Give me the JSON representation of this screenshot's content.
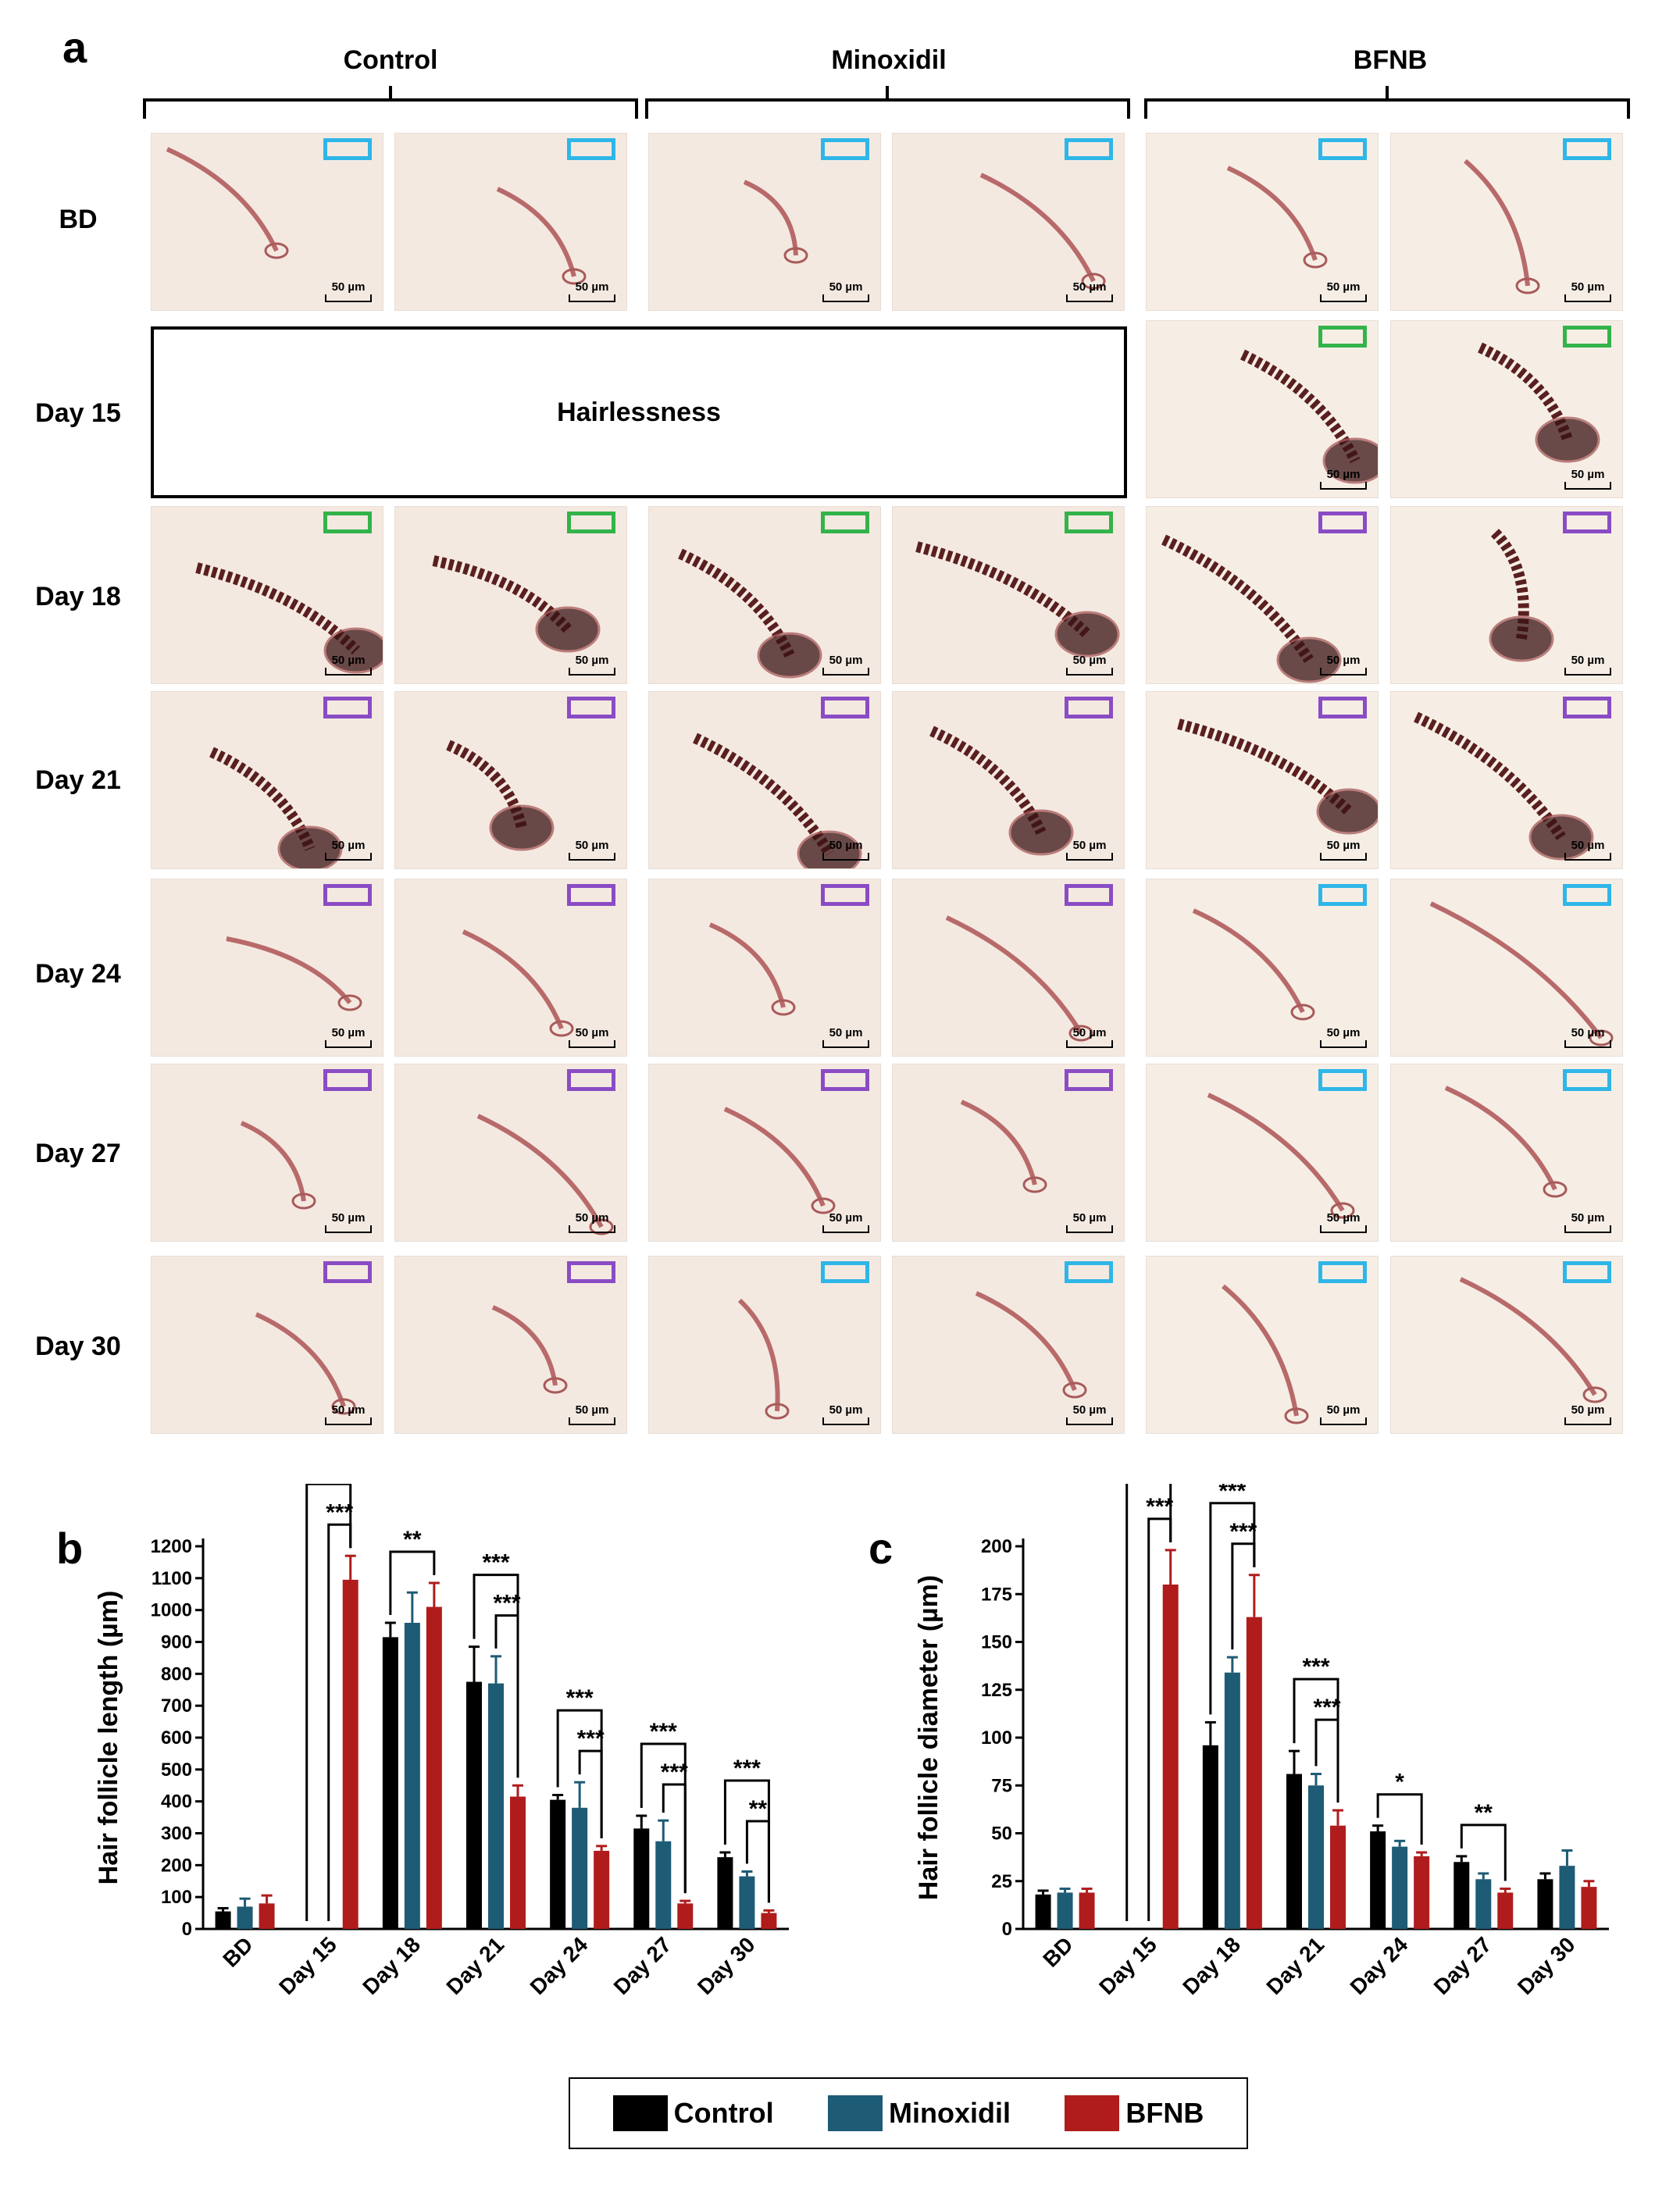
{
  "panel_a": {
    "letter": "a",
    "groups": [
      "Control",
      "Minoxidil",
      "BFNB"
    ],
    "rows": [
      "BD",
      "Day 15",
      "Day 18",
      "Day 21",
      "Day 24",
      "Day 27",
      "Day 30"
    ],
    "hairless_label": "Hairlessness",
    "scale_label": "50 µm",
    "tag_colors": {
      "cyan": "#2fb6e8",
      "green": "#33b34a",
      "purple": "#8a4cc4"
    },
    "tiles": [
      [
        "cyan",
        "cyan",
        "cyan",
        "cyan",
        "cyan",
        "cyan"
      ],
      [
        null,
        null,
        null,
        null,
        "green",
        "green"
      ],
      [
        "green",
        "green",
        "green",
        "green",
        "purple",
        "purple"
      ],
      [
        "purple",
        "purple",
        "purple",
        "purple",
        "purple",
        "purple"
      ],
      [
        "purple",
        "purple",
        "purple",
        "purple",
        "cyan",
        "cyan"
      ],
      [
        "purple",
        "purple",
        "purple",
        "purple",
        "cyan",
        "cyan"
      ],
      [
        "purple",
        "purple",
        "cyan",
        "cyan",
        "cyan",
        "cyan"
      ]
    ]
  },
  "chart_data": [
    {
      "type": "bar",
      "panel": "b",
      "ylabel": "Hair follicle length (µm)",
      "categories": [
        "BD",
        "Day 15",
        "Day 18",
        "Day 21",
        "Day 24",
        "Day 27",
        "Day 30"
      ],
      "ylim": [
        0,
        1200
      ],
      "yticks": [
        "0",
        "100",
        "200",
        "300",
        "400",
        "500",
        "600",
        "700",
        "800",
        "900",
        "1000",
        "1100",
        "1200"
      ],
      "series": [
        {
          "name": "Control",
          "color": "#000000",
          "values": [
            55,
            0,
            915,
            775,
            405,
            315,
            225
          ],
          "errors": [
            10,
            0,
            45,
            110,
            15,
            40,
            15
          ]
        },
        {
          "name": "Minoxidil",
          "color": "#1e5b74",
          "values": [
            70,
            0,
            960,
            770,
            380,
            275,
            165
          ],
          "errors": [
            25,
            0,
            95,
            85,
            80,
            65,
            15
          ]
        },
        {
          "name": "BFNB",
          "color": "#b01c1c",
          "values": [
            80,
            1095,
            1010,
            415,
            245,
            80,
            50
          ],
          "errors": [
            25,
            75,
            75,
            35,
            15,
            8,
            8
          ]
        }
      ],
      "significance": [
        {
          "category": "Day 15",
          "from": "Control",
          "to": "BFNB",
          "label": "***"
        },
        {
          "category": "Day 15",
          "from": "Minoxidil",
          "to": "BFNB",
          "label": "***"
        },
        {
          "category": "Day 18",
          "from": "Control",
          "to": "BFNB",
          "label": "**"
        },
        {
          "category": "Day 21",
          "from": "Control",
          "to": "BFNB",
          "label": "***"
        },
        {
          "category": "Day 21",
          "from": "Minoxidil",
          "to": "BFNB",
          "label": "***"
        },
        {
          "category": "Day 24",
          "from": "Control",
          "to": "BFNB",
          "label": "***"
        },
        {
          "category": "Day 24",
          "from": "Minoxidil",
          "to": "BFNB",
          "label": "***"
        },
        {
          "category": "Day 27",
          "from": "Control",
          "to": "BFNB",
          "label": "***"
        },
        {
          "category": "Day 27",
          "from": "Minoxidil",
          "to": "BFNB",
          "label": "***"
        },
        {
          "category": "Day 30",
          "from": "Control",
          "to": "BFNB",
          "label": "***"
        },
        {
          "category": "Day 30",
          "from": "Minoxidil",
          "to": "BFNB",
          "label": "**"
        }
      ]
    },
    {
      "type": "bar",
      "panel": "c",
      "ylabel": "Hair follicle diameter (µm)",
      "categories": [
        "BD",
        "Day 15",
        "Day 18",
        "Day 21",
        "Day 24",
        "Day 27",
        "Day 30"
      ],
      "ylim": [
        0,
        200
      ],
      "yticks": [
        "0",
        "25",
        "50",
        "75",
        "100",
        "125",
        "150",
        "175",
        "200"
      ],
      "series": [
        {
          "name": "Control",
          "color": "#000000",
          "values": [
            18,
            0,
            96,
            81,
            51,
            35,
            26
          ],
          "errors": [
            2,
            0,
            12,
            12,
            3,
            3,
            3
          ]
        },
        {
          "name": "Minoxidil",
          "color": "#1e5b74",
          "values": [
            19,
            0,
            134,
            75,
            43,
            26,
            33
          ],
          "errors": [
            2,
            0,
            8,
            6,
            3,
            3,
            8
          ]
        },
        {
          "name": "BFNB",
          "color": "#b01c1c",
          "values": [
            19,
            180,
            163,
            54,
            38,
            19,
            22
          ],
          "errors": [
            2,
            18,
            22,
            8,
            2,
            2,
            3
          ]
        }
      ],
      "significance": [
        {
          "category": "Day 15",
          "from": "Control",
          "to": "BFNB",
          "label": "***"
        },
        {
          "category": "Day 15",
          "from": "Minoxidil",
          "to": "BFNB",
          "label": "***"
        },
        {
          "category": "Day 18",
          "from": "Control",
          "to": "BFNB",
          "label": "***"
        },
        {
          "category": "Day 18",
          "from": "Minoxidil",
          "to": "BFNB",
          "label": "***"
        },
        {
          "category": "Day 21",
          "from": "Control",
          "to": "BFNB",
          "label": "***"
        },
        {
          "category": "Day 21",
          "from": "Minoxidil",
          "to": "BFNB",
          "label": "***"
        },
        {
          "category": "Day 24",
          "from": "Control",
          "to": "BFNB",
          "label": "*"
        },
        {
          "category": "Day 27",
          "from": "Control",
          "to": "BFNB",
          "label": "**"
        }
      ]
    }
  ],
  "panel_b_letter": "b",
  "panel_c_letter": "c",
  "legend": [
    {
      "label": "Control",
      "color": "#000000"
    },
    {
      "label": "Minoxidil",
      "color": "#1e5b74"
    },
    {
      "label": "BFNB",
      "color": "#b01c1c"
    }
  ]
}
